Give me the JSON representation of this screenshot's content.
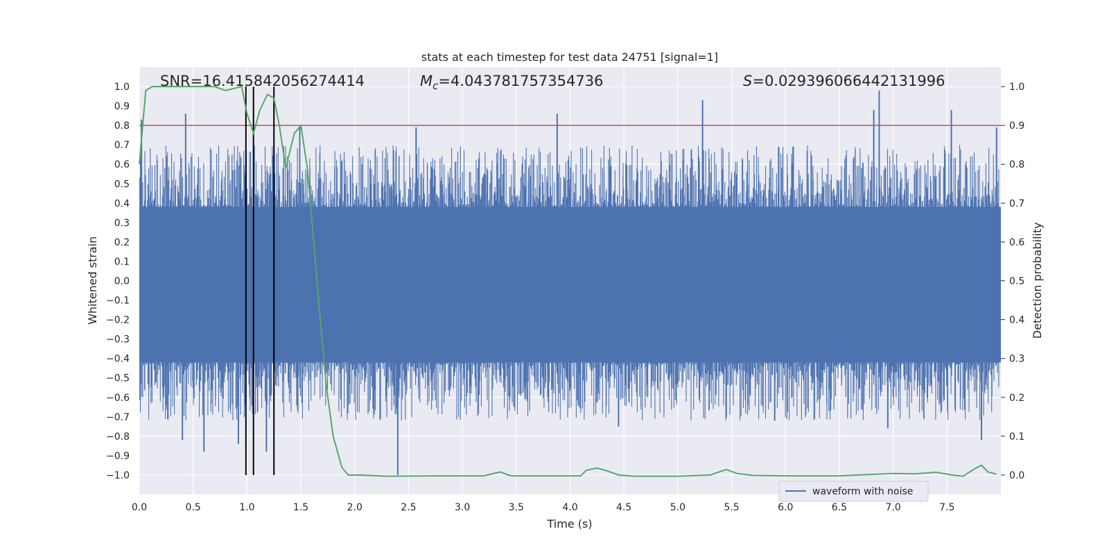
{
  "chart_data": {
    "type": "line",
    "title": "stats at each timestep for test data 24751 [signal=1]",
    "xlabel": "Time (s)",
    "ylabel": "Whitened strain",
    "ylabel_right": "Detection probability",
    "xlim": [
      0.0,
      8.0
    ],
    "ylim": [
      -1.1,
      1.1
    ],
    "ylim_right": [
      -0.05,
      1.05
    ],
    "x_ticks": [
      "0.0",
      "0.5",
      "1.0",
      "1.5",
      "2.0",
      "2.5",
      "3.0",
      "3.5",
      "4.0",
      "4.5",
      "5.0",
      "5.5",
      "6.0",
      "6.5",
      "7.0",
      "7.5"
    ],
    "y_ticks": [
      "1.0",
      "0.9",
      "0.8",
      "0.7",
      "0.6",
      "0.5",
      "0.4",
      "0.3",
      "0.2",
      "0.1",
      "0.0",
      "−0.1",
      "−0.2",
      "−0.3",
      "−0.4",
      "−0.5",
      "−0.6",
      "−0.7",
      "−0.8",
      "−0.9",
      "−1.0"
    ],
    "y_ticks_right": [
      "1.0",
      "0.9",
      "0.8",
      "0.7",
      "0.6",
      "0.5",
      "0.4",
      "0.3",
      "0.2",
      "0.1",
      "0.0"
    ],
    "grid": true,
    "legend": {
      "placement": "lower-right",
      "entries": [
        "waveform with noise"
      ]
    },
    "annotations": {
      "snr": "SNR=16.415842056274414",
      "mc_symbol": "M",
      "mc_sub": "c",
      "mc_value": "=4.043781757354736",
      "s_symbol": "S",
      "s_value": "=0.029396066442131996"
    },
    "threshold_line": {
      "y_right": 0.9,
      "color": "#c44e52"
    },
    "vertical_lines_x": [
      0.99,
      1.06,
      1.25
    ],
    "waveform": {
      "name": "waveform with noise",
      "color": "#4c72b0",
      "dense_band": [
        -0.42,
        0.38
      ],
      "upper_spikes": [
        [
          0.02,
          0.83
        ],
        [
          0.43,
          0.86
        ],
        [
          1.49,
          0.79
        ],
        [
          2.57,
          0.79
        ],
        [
          3.88,
          0.86
        ],
        [
          5.23,
          0.93
        ],
        [
          6.82,
          0.88
        ],
        [
          6.87,
          0.98
        ],
        [
          7.54,
          0.88
        ],
        [
          7.96,
          0.79
        ]
      ],
      "lower_spikes": [
        [
          0.4,
          -0.82
        ],
        [
          0.6,
          -0.88
        ],
        [
          0.92,
          -0.84
        ],
        [
          1.18,
          -0.88
        ],
        [
          2.4,
          -1.0
        ],
        [
          4.45,
          -0.75
        ],
        [
          5.9,
          -0.72
        ],
        [
          6.95,
          -0.76
        ],
        [
          7.82,
          -0.82
        ]
      ]
    },
    "detection_probability": {
      "color": "#55a868",
      "x": [
        0.0,
        0.06,
        0.12,
        0.3,
        0.5,
        0.7,
        0.8,
        0.95,
        1.0,
        1.06,
        1.12,
        1.19,
        1.25,
        1.3,
        1.36,
        1.44,
        1.5,
        1.56,
        1.62,
        1.68,
        1.74,
        1.8,
        1.88,
        1.94,
        2.05,
        2.3,
        2.8,
        3.2,
        3.35,
        3.45,
        3.7,
        3.9,
        4.1,
        4.15,
        4.25,
        4.35,
        4.45,
        4.6,
        5.0,
        5.3,
        5.45,
        5.55,
        5.7,
        6.0,
        6.5,
        7.0,
        7.2,
        7.4,
        7.55,
        7.65,
        7.75,
        7.82,
        7.88,
        7.96
      ],
      "y": [
        0.8,
        0.99,
        1.0,
        1.0,
        1.0,
        1.0,
        0.99,
        1.0,
        0.93,
        0.88,
        0.94,
        0.98,
        0.97,
        0.9,
        0.79,
        0.88,
        0.9,
        0.79,
        0.6,
        0.4,
        0.22,
        0.1,
        0.02,
        0.0,
        0.0,
        -0.003,
        -0.002,
        -0.002,
        0.008,
        -0.002,
        -0.002,
        -0.002,
        -0.002,
        0.012,
        0.018,
        0.01,
        0.0,
        -0.003,
        -0.003,
        0.0,
        0.014,
        0.004,
        -0.001,
        -0.002,
        -0.002,
        0.004,
        0.003,
        0.007,
        0.0,
        -0.003,
        0.015,
        0.025,
        0.008,
        0.002
      ]
    }
  }
}
